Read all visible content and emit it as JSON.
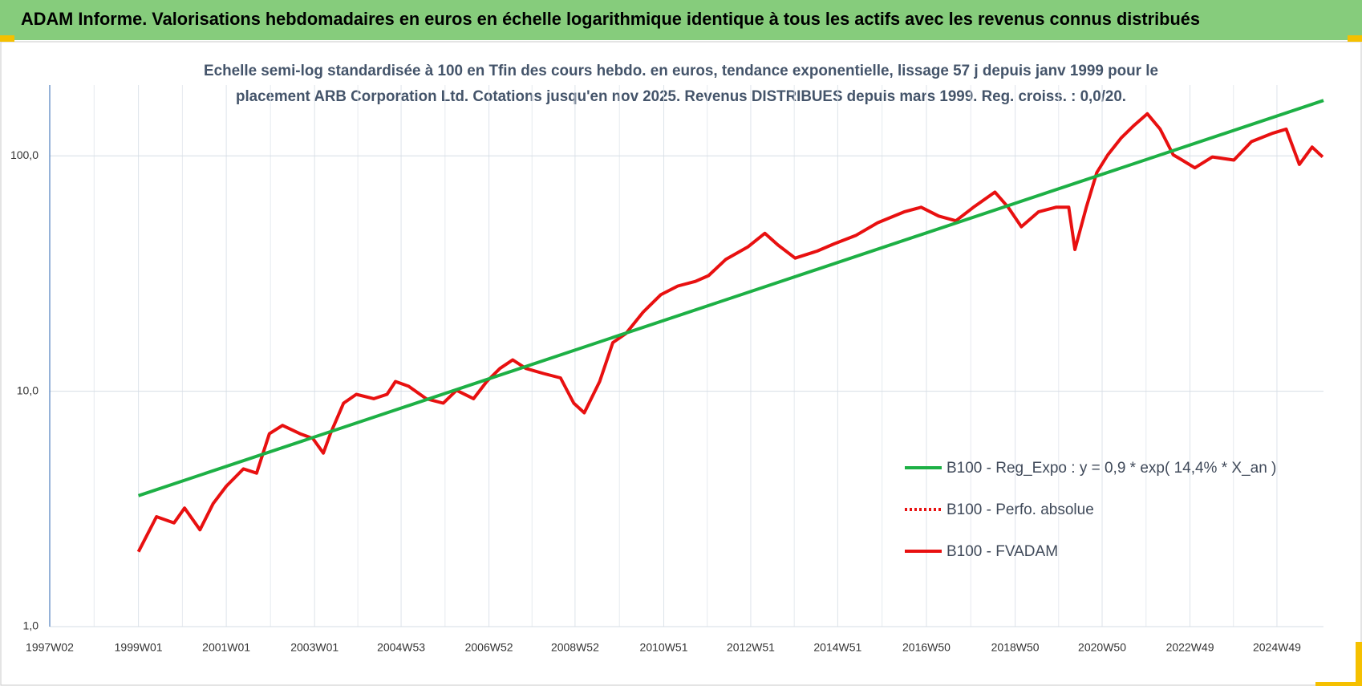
{
  "chart_data": {
    "type": "line",
    "title": "ADAM Informe. Valorisations hebdomadaires en euros en échelle logarithmique identique à tous les actifs avec les revenus connus distribués",
    "subtitle": [
      "Echelle semi-log standardisée à 100 en Tfin des cours hebdo. en euros, tendance exponentielle, lissage 57 j depuis janv 1999 pour le",
      "placement ARB Corporation Ltd. Cotations jusqu'en nov 2025. Revenus DISTRIBUES depuis mars 1999. Reg. croiss. : 0,0/20."
    ],
    "log_y": true,
    "grid": true,
    "legend": "right",
    "xlim": [
      1997.0,
      2026.0
    ],
    "xticks": [
      {
        "value": 1997.0,
        "label": "1997W02"
      },
      {
        "value": 1999.02,
        "label": "1999W01"
      },
      {
        "value": 2001.02,
        "label": "2001W01"
      },
      {
        "value": 2003.03,
        "label": "2003W01"
      },
      {
        "value": 2005.0,
        "label": "2004W53"
      },
      {
        "value": 2007.0,
        "label": "2006W52"
      },
      {
        "value": 2008.96,
        "label": "2008W52"
      },
      {
        "value": 2010.98,
        "label": "2010W51"
      },
      {
        "value": 2012.96,
        "label": "2012W51"
      },
      {
        "value": 2014.94,
        "label": "2014W51"
      },
      {
        "value": 2016.96,
        "label": "2016W50"
      },
      {
        "value": 2018.98,
        "label": "2018W50"
      },
      {
        "value": 2020.96,
        "label": "2020W50"
      },
      {
        "value": 2022.96,
        "label": "2022W49"
      },
      {
        "value": 2024.94,
        "label": "2024W49"
      }
    ],
    "ylim": [
      1,
      200
    ],
    "yticks": [
      {
        "value": 1,
        "label": "1,0"
      },
      {
        "value": 10,
        "label": "10,0"
      },
      {
        "value": 100,
        "label": "100,0"
      }
    ],
    "series": [
      {
        "name": "B100 - Reg_Expo : y = 0,9 * exp( 14,4% *  X_an )",
        "color": "#1db045",
        "dash": "solid",
        "x": [
          1999.02,
          2026.0
        ],
        "values": [
          3.6,
          172
        ]
      },
      {
        "name": "B100 - Perfo. absolue",
        "color": "#e81010",
        "dash": "dotted",
        "x": [],
        "values": []
      },
      {
        "name": "B100 - FVADAM",
        "color": "#e81010",
        "dash": "solid",
        "x": [
          1999.02,
          1999.43,
          1999.83,
          2000.07,
          2000.42,
          2000.72,
          2001.02,
          2001.41,
          2001.71,
          2002.0,
          2002.3,
          2002.7,
          2002.99,
          2003.23,
          2003.39,
          2003.69,
          2003.98,
          2004.38,
          2004.68,
          2004.87,
          2005.17,
          2005.57,
          2005.96,
          2006.26,
          2006.65,
          2006.95,
          2007.25,
          2007.54,
          2007.84,
          2008.24,
          2008.63,
          2008.93,
          2009.17,
          2009.52,
          2009.82,
          2010.12,
          2010.51,
          2010.91,
          2011.3,
          2011.7,
          2012.0,
          2012.39,
          2012.89,
          2013.28,
          2013.58,
          2013.97,
          2014.47,
          2014.86,
          2015.36,
          2015.85,
          2016.45,
          2016.84,
          2017.24,
          2017.63,
          2018.03,
          2018.52,
          2018.82,
          2019.12,
          2019.51,
          2019.91,
          2020.2,
          2020.34,
          2020.6,
          2020.84,
          2021.09,
          2021.39,
          2021.69,
          2021.99,
          2022.28,
          2022.58,
          2022.78,
          2023.07,
          2023.47,
          2023.96,
          2024.36,
          2024.85,
          2025.15,
          2025.45,
          2025.74,
          2025.98
        ],
        "values": [
          2.08,
          2.93,
          2.76,
          3.19,
          2.58,
          3.33,
          3.95,
          4.68,
          4.49,
          6.6,
          7.16,
          6.6,
          6.3,
          5.46,
          6.6,
          8.9,
          9.7,
          9.3,
          9.7,
          11.0,
          10.5,
          9.3,
          8.9,
          10.1,
          9.3,
          11,
          12.5,
          13.6,
          12.5,
          11.9,
          11.4,
          8.9,
          8.1,
          11,
          16.1,
          17.6,
          21.7,
          25.7,
          28,
          29.3,
          31,
          36.3,
          41,
          46.9,
          41.8,
          36.8,
          39.4,
          42.3,
          46,
          52,
          57.8,
          60.5,
          55.5,
          53,
          60.5,
          70.2,
          60.5,
          50,
          57.8,
          60.5,
          60.5,
          40,
          60.5,
          85,
          101,
          119,
          135,
          151,
          130,
          101,
          96,
          89,
          99,
          96,
          115,
          125,
          130,
          92,
          109,
          99
        ]
      }
    ]
  }
}
